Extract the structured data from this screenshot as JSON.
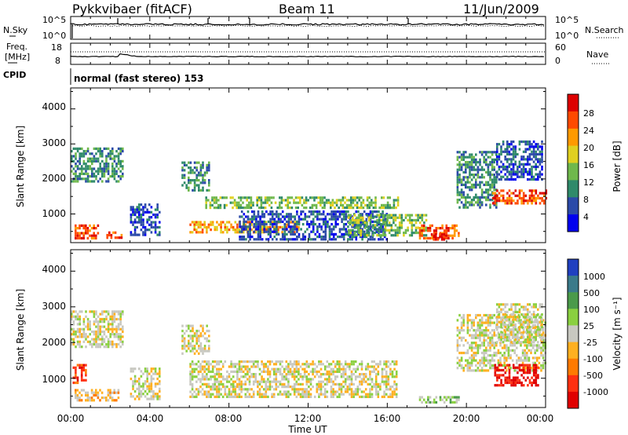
{
  "header": {
    "radar": "Pykkvibaer (fitACF)",
    "beam": "Beam 11",
    "date": "11/Jun/2009"
  },
  "noise_panel": {
    "left_label": "N.Sky",
    "right_label": "N.Search",
    "left_ticks": [
      "10^5",
      "10^0"
    ],
    "right_ticks": [
      "10^5",
      "10^0"
    ]
  },
  "freq_panel": {
    "left_label_1": "Freq.",
    "left_label_2": "[MHz]",
    "right_label": "Nave",
    "left_ticks": [
      "18",
      "8"
    ],
    "right_ticks": [
      "60",
      "0"
    ]
  },
  "cpid": {
    "label": "CPID",
    "mode": "normal (fast stereo) 153"
  },
  "x_axis": {
    "label": "Time UT",
    "ticks": [
      "00:00",
      "04:00",
      "08:00",
      "12:00",
      "16:00",
      "20:00",
      "00:00"
    ]
  },
  "chart_data": [
    {
      "type": "heatmap",
      "name": "power",
      "xlabel": "Time UT",
      "ylabel": "Slant Range [km]",
      "xlim": [
        0,
        24
      ],
      "ylim": [
        180,
        4600
      ],
      "yticks": [
        "4000",
        "3000",
        "2000",
        "1000"
      ],
      "colorbar": {
        "label": "Power [dB]",
        "ticks": [
          "28",
          "24",
          "20",
          "16",
          "12",
          "8",
          "4"
        ],
        "colors": [
          "#dd0000",
          "#ff4a00",
          "#ff9a00",
          "#e0d020",
          "#6fb84c",
          "#2f8a6a",
          "#2b4aa8",
          "#0000ee"
        ]
      },
      "echo_regions": [
        {
          "t": [
            0.0,
            2.6
          ],
          "r": [
            1900,
            2900
          ],
          "level": 2
        },
        {
          "t": [
            0.2,
            1.4
          ],
          "r": [
            300,
            700
          ],
          "level": 6
        },
        {
          "t": [
            1.8,
            2.6
          ],
          "r": [
            300,
            500
          ],
          "level": 6
        },
        {
          "t": [
            3.0,
            4.5
          ],
          "r": [
            400,
            1300
          ],
          "level": 1
        },
        {
          "t": [
            5.6,
            7.0
          ],
          "r": [
            1700,
            2500
          ],
          "level": 2
        },
        {
          "t": [
            6.0,
            11.5
          ],
          "r": [
            450,
            800
          ],
          "level": 5
        },
        {
          "t": [
            6.8,
            16.5
          ],
          "r": [
            1200,
            1500
          ],
          "level": 3
        },
        {
          "t": [
            8.5,
            16.0
          ],
          "r": [
            250,
            1100
          ],
          "level": 1
        },
        {
          "t": [
            14.0,
            18.0
          ],
          "r": [
            400,
            1000
          ],
          "level": 3
        },
        {
          "t": [
            17.6,
            19.6
          ],
          "r": [
            300,
            700
          ],
          "level": 6
        },
        {
          "t": [
            18.2,
            19.0
          ],
          "r": [
            300,
            450
          ],
          "level": 7
        },
        {
          "t": [
            19.5,
            21.5
          ],
          "r": [
            1200,
            2800
          ],
          "level": 2
        },
        {
          "t": [
            21.3,
            24.0
          ],
          "r": [
            1300,
            1700
          ],
          "level": 6
        },
        {
          "t": [
            21.5,
            23.8
          ],
          "r": [
            2000,
            3100
          ],
          "level": 1
        }
      ]
    },
    {
      "type": "heatmap",
      "name": "velocity",
      "xlabel": "Time UT",
      "ylabel": "Slant Range [km]",
      "xlim": [
        0,
        24
      ],
      "ylim": [
        180,
        4600
      ],
      "yticks": [
        "4000",
        "3000",
        "2000",
        "1000"
      ],
      "colorbar": {
        "label": "Velocity [m s⁻¹]",
        "ticks": [
          "1000",
          "500",
          "100",
          "25",
          "-25",
          "-100",
          "-500",
          "-1000"
        ],
        "colors": [
          "#2040c0",
          "#3a7a8a",
          "#4a9a4a",
          "#8ad040",
          "#c8c8c0",
          "#ffb020",
          "#ff7a00",
          "#ff3010",
          "#e00000"
        ]
      },
      "echo_regions": [
        {
          "t": [
            0.0,
            2.6
          ],
          "r": [
            1900,
            2900
          ],
          "level": 4
        },
        {
          "t": [
            0.1,
            0.8
          ],
          "r": [
            900,
            1400
          ],
          "level": 7
        },
        {
          "t": [
            0.2,
            2.4
          ],
          "r": [
            350,
            700
          ],
          "level": 5
        },
        {
          "t": [
            3.0,
            4.5
          ],
          "r": [
            400,
            1300
          ],
          "level": 4
        },
        {
          "t": [
            5.6,
            7.0
          ],
          "r": [
            1700,
            2500
          ],
          "level": 4
        },
        {
          "t": [
            6.0,
            16.5
          ],
          "r": [
            500,
            1500
          ],
          "level": 4
        },
        {
          "t": [
            17.6,
            19.6
          ],
          "r": [
            300,
            500
          ],
          "level": 3
        },
        {
          "t": [
            19.5,
            24.0
          ],
          "r": [
            1200,
            2800
          ],
          "level": 4
        },
        {
          "t": [
            21.4,
            23.6
          ],
          "r": [
            800,
            1400
          ],
          "level": 8
        },
        {
          "t": [
            21.5,
            23.8
          ],
          "r": [
            2000,
            3100
          ],
          "level": 4
        }
      ]
    }
  ]
}
